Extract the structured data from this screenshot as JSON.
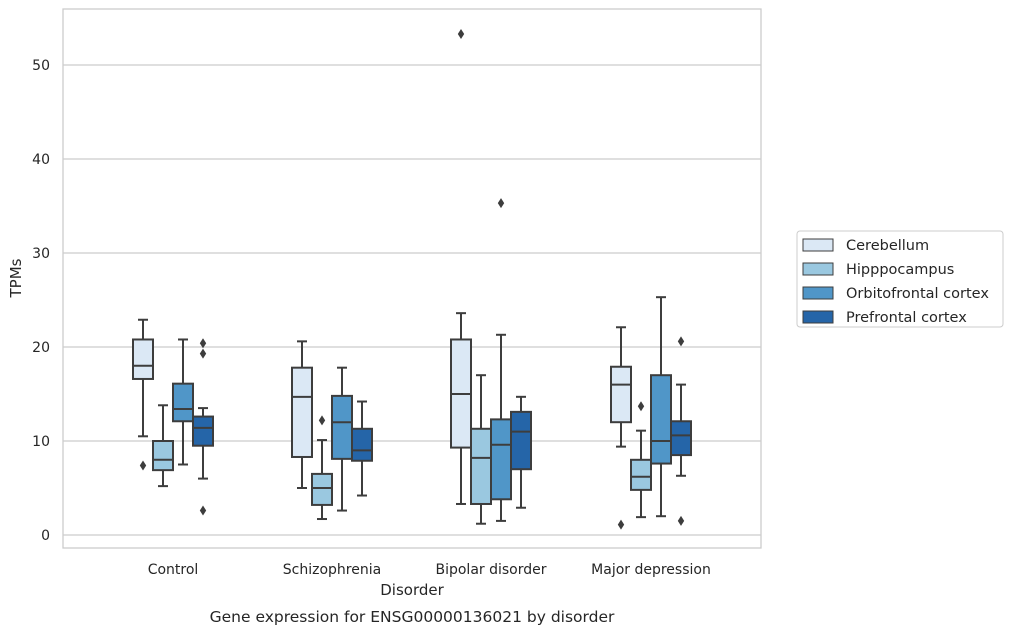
{
  "chart_data": {
    "type": "box",
    "caption": "Gene expression for ENSG00000136021 by disorder",
    "xlabel": "Disorder",
    "ylabel": "TPMs",
    "ylim": [
      -1.3,
      56
    ],
    "yticks": [
      0,
      10,
      20,
      30,
      40,
      50
    ],
    "grid": "horizontal",
    "legend_position": "right",
    "categories": [
      "Control",
      "Schizophrenia",
      "Bipolar disorder",
      "Major depression"
    ],
    "series": [
      {
        "name": "Cerebellum",
        "color": "#dbe8f5",
        "boxes": [
          {
            "whislo": 10.5,
            "q1": 16.6,
            "med": 18.0,
            "q3": 20.8,
            "whishi": 22.9,
            "fliers": [
              7.4
            ]
          },
          {
            "whislo": 5.0,
            "q1": 8.3,
            "med": 14.7,
            "q3": 17.8,
            "whishi": 20.6,
            "fliers": []
          },
          {
            "whislo": 3.3,
            "q1": 9.3,
            "med": 15.0,
            "q3": 20.8,
            "whishi": 23.6,
            "fliers": [
              53.3
            ]
          },
          {
            "whislo": 9.4,
            "q1": 12.0,
            "med": 16.0,
            "q3": 17.9,
            "whishi": 22.1,
            "fliers": [
              1.1
            ]
          }
        ]
      },
      {
        "name": "Hipppocampus",
        "color": "#9ac8e0",
        "boxes": [
          {
            "whislo": 5.2,
            "q1": 6.9,
            "med": 8.0,
            "q3": 10.0,
            "whishi": 13.8,
            "fliers": []
          },
          {
            "whislo": 1.7,
            "q1": 3.2,
            "med": 5.0,
            "q3": 6.5,
            "whishi": 10.1,
            "fliers": [
              12.2
            ]
          },
          {
            "whislo": 1.2,
            "q1": 3.3,
            "med": 8.2,
            "q3": 11.3,
            "whishi": 17.0,
            "fliers": []
          },
          {
            "whislo": 1.9,
            "q1": 4.8,
            "med": 6.2,
            "q3": 8.0,
            "whishi": 11.1,
            "fliers": [
              13.7
            ]
          }
        ]
      },
      {
        "name": "Orbitofrontal cortex",
        "color": "#5096c8",
        "boxes": [
          {
            "whislo": 7.5,
            "q1": 12.1,
            "med": 13.4,
            "q3": 16.1,
            "whishi": 20.8,
            "fliers": []
          },
          {
            "whislo": 2.6,
            "q1": 8.1,
            "med": 12.0,
            "q3": 14.8,
            "whishi": 17.8,
            "fliers": []
          },
          {
            "whislo": 1.5,
            "q1": 3.8,
            "med": 9.6,
            "q3": 12.3,
            "whishi": 21.3,
            "fliers": [
              35.3
            ]
          },
          {
            "whislo": 2.0,
            "q1": 7.6,
            "med": 10.0,
            "q3": 17.0,
            "whishi": 25.3,
            "fliers": []
          }
        ]
      },
      {
        "name": "Prefrontal cortex",
        "color": "#2565a8",
        "boxes": [
          {
            "whislo": 6.0,
            "q1": 9.5,
            "med": 11.4,
            "q3": 12.6,
            "whishi": 13.5,
            "fliers": [
              20.4,
              19.3,
              2.6
            ]
          },
          {
            "whislo": 4.2,
            "q1": 7.9,
            "med": 9.0,
            "q3": 11.3,
            "whishi": 14.2,
            "fliers": []
          },
          {
            "whislo": 2.9,
            "q1": 7.0,
            "med": 11.0,
            "q3": 13.1,
            "whishi": 14.7,
            "fliers": []
          },
          {
            "whislo": 6.3,
            "q1": 8.5,
            "med": 10.6,
            "q3": 12.1,
            "whishi": 16.0,
            "fliers": [
              20.6,
              1.5
            ]
          }
        ]
      }
    ]
  }
}
